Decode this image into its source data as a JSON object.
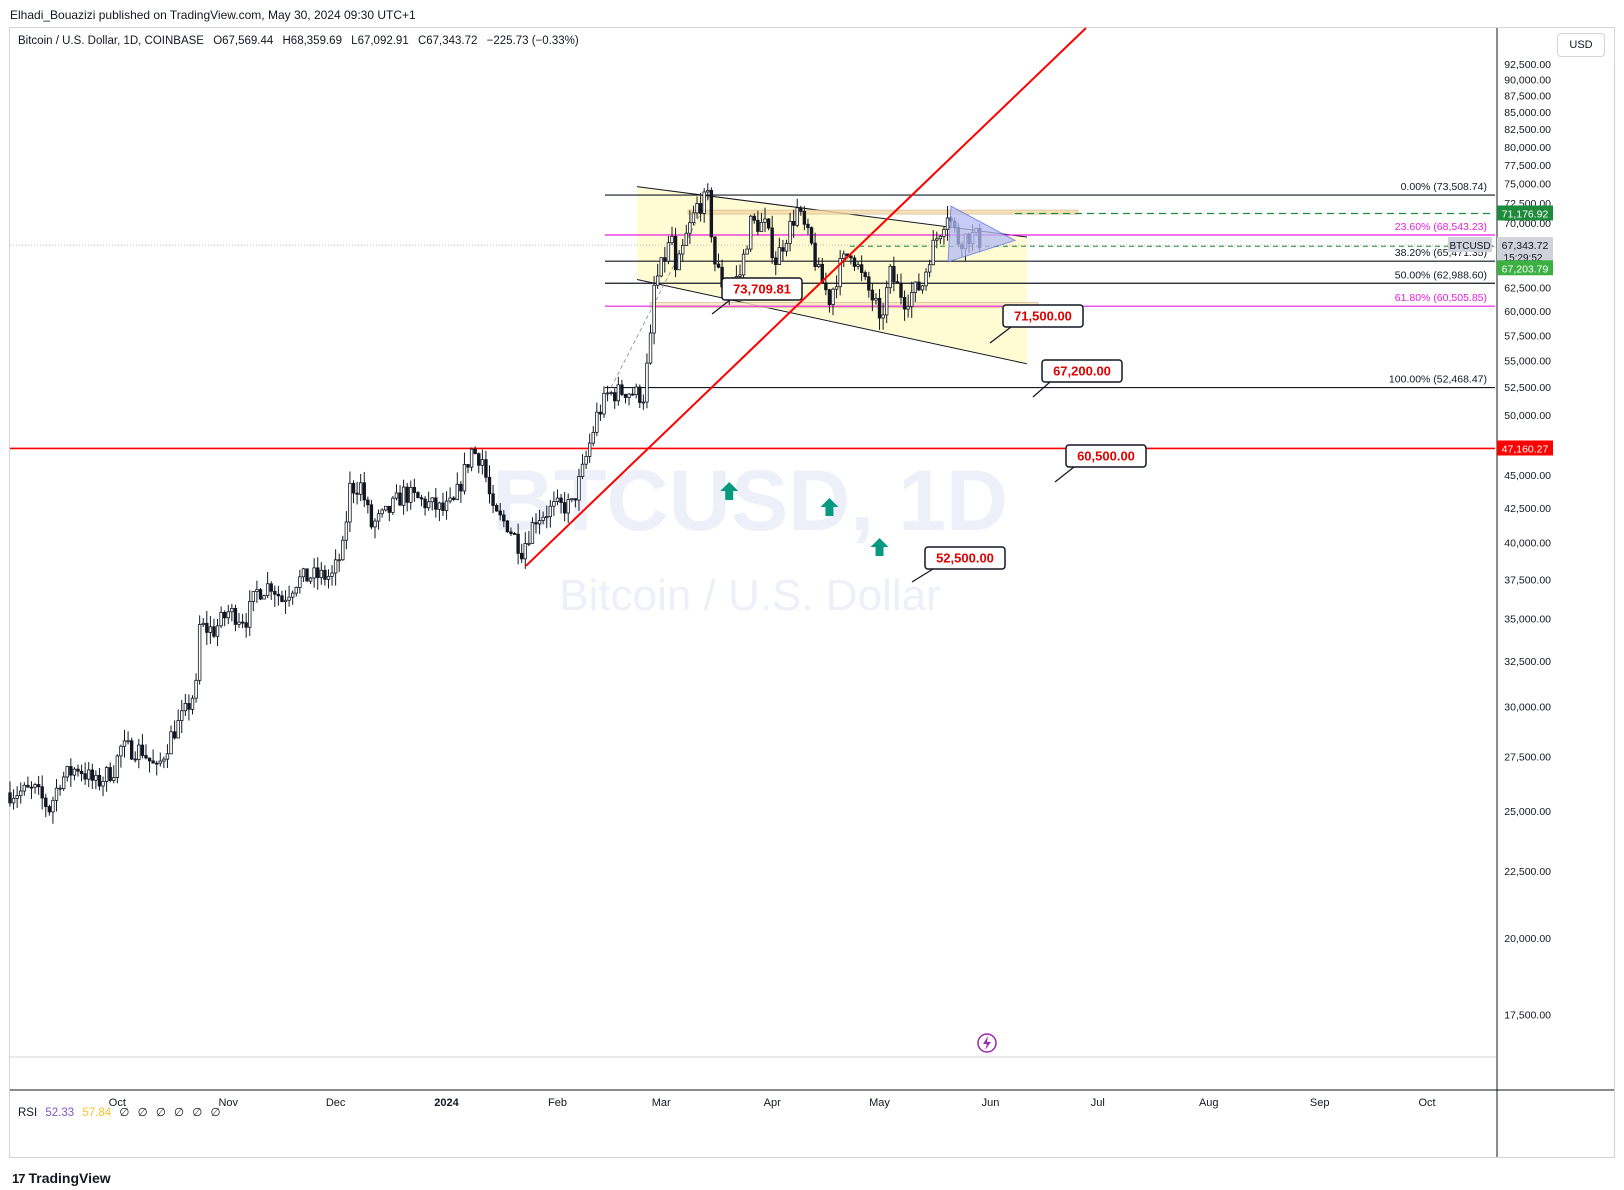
{
  "header": {
    "published_by": "Elhadi_Bouazizi published on TradingView.com, May 30, 2024 09:30 UTC+1"
  },
  "legend": {
    "symbol": "Bitcoin / U.S. Dollar, 1D, COINBASE",
    "open": "O67,569.44",
    "high": "H68,359.69",
    "low": "L67,092.91",
    "close": "C67,343.72",
    "change": "−225.73 (−0.33%)"
  },
  "rsi": {
    "label": "RSI",
    "value1": "52.33",
    "value2": "57.84",
    "empty_marks": [
      "∅",
      "∅",
      "∅",
      "∅",
      "∅",
      "∅"
    ]
  },
  "currency_button": "USD",
  "brand": {
    "logo": "17",
    "name": "TradingView"
  },
  "watermark": {
    "main": "BTCUSD, 1D",
    "sub": "Bitcoin / U.S. Dollar"
  },
  "colors": {
    "up": "#131722",
    "down": "#131722",
    "trendline": "#ff0000",
    "fib_pink": "#e91ee1",
    "fib_black": "#131722",
    "green_arrow": "#089981",
    "channel_fill": "#fff9c4"
  },
  "chart_data": {
    "type": "candlestick",
    "y_scale": "log",
    "ylim": [
      16300,
      98500
    ],
    "y_ticks": [
      17500,
      20000,
      22500,
      25000,
      27500,
      30000,
      32500,
      35000,
      37500,
      40000,
      42500,
      45000,
      47500,
      50000,
      52500,
      55000,
      57500,
      60000,
      62500,
      65000,
      67500,
      70000,
      72500,
      75000,
      77500,
      80000,
      82500,
      85000,
      87500,
      90000,
      92500
    ],
    "y_tick_labels": [
      "17,500.00",
      "20,000.00",
      "22,500.00",
      "25,000.00",
      "27,500.00",
      "30,000.00",
      "32,500.00",
      "35,000.00",
      "37,500.00",
      "40,000.00",
      "42,500.00",
      "45,000.00",
      "47,500.00",
      "50,000.00",
      "52,500.00",
      "55,000.00",
      "57,500.00",
      "60,000.00",
      "62,500.00",
      "65,000.00",
      "67,500.00",
      "70,000.00",
      "72,500.00",
      "75,000.00",
      "77,500.00",
      "80,000.00",
      "82,500.00",
      "85,000.00",
      "87,500.00",
      "90,000.00",
      "92,500.00"
    ],
    "x_axis": {
      "start_date": "2023-09-01",
      "end_date": "2024-10-20",
      "labels": [
        {
          "text": "Oct",
          "date": "2023-10-01"
        },
        {
          "text": "Nov",
          "date": "2023-11-01"
        },
        {
          "text": "Dec",
          "date": "2023-12-01"
        },
        {
          "text": "2024",
          "date": "2024-01-01",
          "bold": true
        },
        {
          "text": "Feb",
          "date": "2024-02-01"
        },
        {
          "text": "Mar",
          "date": "2024-03-01"
        },
        {
          "text": "Apr",
          "date": "2024-04-01"
        },
        {
          "text": "May",
          "date": "2024-05-01"
        },
        {
          "text": "Jun",
          "date": "2024-06-01"
        },
        {
          "text": "Jul",
          "date": "2024-07-01"
        },
        {
          "text": "Aug",
          "date": "2024-08-01"
        },
        {
          "text": "Sep",
          "date": "2024-09-01"
        },
        {
          "text": "Oct",
          "date": "2024-10-01"
        }
      ]
    },
    "series_close": [
      [
        "2023-09-01",
        25800
      ],
      [
        "2023-09-08",
        25900
      ],
      [
        "2023-09-12",
        25100
      ],
      [
        "2023-09-15",
        26400
      ],
      [
        "2023-09-20",
        27000
      ],
      [
        "2023-09-25",
        26200
      ],
      [
        "2023-09-30",
        26900
      ],
      [
        "2023-10-02",
        27900
      ],
      [
        "2023-10-08",
        27800
      ],
      [
        "2023-10-12",
        26800
      ],
      [
        "2023-10-16",
        28500
      ],
      [
        "2023-10-20",
        29700
      ],
      [
        "2023-10-23",
        31000
      ],
      [
        "2023-10-24",
        34500
      ],
      [
        "2023-10-28",
        34300
      ],
      [
        "2023-11-01",
        35400
      ],
      [
        "2023-11-06",
        35000
      ],
      [
        "2023-11-09",
        36700
      ],
      [
        "2023-11-13",
        37200
      ],
      [
        "2023-11-16",
        36200
      ],
      [
        "2023-11-20",
        37400
      ],
      [
        "2023-11-24",
        37700
      ],
      [
        "2023-11-30",
        37700
      ],
      [
        "2023-12-03",
        39500
      ],
      [
        "2023-12-05",
        44000
      ],
      [
        "2023-12-08",
        44200
      ],
      [
        "2023-12-11",
        41200
      ],
      [
        "2023-12-15",
        42000
      ],
      [
        "2023-12-20",
        43600
      ],
      [
        "2023-12-25",
        43000
      ],
      [
        "2023-12-31",
        42300
      ],
      [
        "2024-01-03",
        42800
      ],
      [
        "2024-01-08",
        47000
      ],
      [
        "2024-01-11",
        46300
      ],
      [
        "2024-01-14",
        42000
      ],
      [
        "2024-01-18",
        41300
      ],
      [
        "2024-01-22",
        39500
      ],
      [
        "2024-01-26",
        41800
      ],
      [
        "2024-01-31",
        42500
      ],
      [
        "2024-02-05",
        42700
      ],
      [
        "2024-02-08",
        45300
      ],
      [
        "2024-02-12",
        49900
      ],
      [
        "2024-02-15",
        51800
      ],
      [
        "2024-02-20",
        52200
      ],
      [
        "2024-02-25",
        51700
      ],
      [
        "2024-02-27",
        57000
      ],
      [
        "2024-02-28",
        62500
      ],
      [
        "2024-03-04",
        68300
      ],
      [
        "2024-03-05",
        63800
      ],
      [
        "2024-03-08",
        68300
      ],
      [
        "2024-03-11",
        72100
      ],
      [
        "2024-03-14",
        73000
      ],
      [
        "2024-03-16",
        65300
      ],
      [
        "2024-03-19",
        61900
      ],
      [
        "2024-03-23",
        64000
      ],
      [
        "2024-03-26",
        70000
      ],
      [
        "2024-03-30",
        69700
      ],
      [
        "2024-04-02",
        65600
      ],
      [
        "2024-04-08",
        71600
      ],
      [
        "2024-04-12",
        67200
      ],
      [
        "2024-04-14",
        64000
      ],
      [
        "2024-04-17",
        61300
      ],
      [
        "2024-04-20",
        64900
      ],
      [
        "2024-04-23",
        66800
      ],
      [
        "2024-04-26",
        63700
      ],
      [
        "2024-04-30",
        60600
      ],
      [
        "2024-05-01",
        58300
      ],
      [
        "2024-05-04",
        64000
      ],
      [
        "2024-05-08",
        61200
      ],
      [
        "2024-05-13",
        62900
      ],
      [
        "2024-05-15",
        66200
      ],
      [
        "2024-05-20",
        71400
      ],
      [
        "2024-05-21",
        70100
      ],
      [
        "2024-05-23",
        67900
      ],
      [
        "2024-05-26",
        68500
      ],
      [
        "2024-05-28",
        68300
      ],
      [
        "2024-05-30",
        67343.72
      ]
    ],
    "fib_levels": [
      {
        "ratio": "0.00%",
        "price": 73508.74,
        "label": "0.00% (73,508.74)",
        "color": "black"
      },
      {
        "ratio": "23.60%",
        "price": 68543.23,
        "label": "23.60% (68,543.23)",
        "color": "pink"
      },
      {
        "ratio": "38.20%",
        "price": 65471.35,
        "label": "38.20% (65,471.35)",
        "color": "black"
      },
      {
        "ratio": "50.00%",
        "price": 62988.6,
        "label": "50.00% (62,988.60)",
        "color": "black"
      },
      {
        "ratio": "61.80%",
        "price": 60505.85,
        "label": "61.80% (60,505.85)",
        "color": "pink"
      },
      {
        "ratio": "100.00%",
        "price": 52468.47,
        "label": "100.00% (52,468.47)",
        "color": "black"
      }
    ],
    "callouts": [
      {
        "text": "73,709.81",
        "price": 73709.81
      },
      {
        "text": "71,500.00",
        "price": 71500
      },
      {
        "text": "67,200.00",
        "price": 67200
      },
      {
        "text": "60,500.00",
        "price": 60500
      },
      {
        "text": "52,500.00",
        "price": 52500
      }
    ],
    "horizontal_level": {
      "price": 47160.27,
      "label": "47,160.27"
    },
    "price_tags": [
      {
        "text": "71,176.92",
        "price": 71176.92,
        "color": "#1e8a3c"
      },
      {
        "text": "67,343.72",
        "price": 67343.72,
        "color": "#cfd2d8",
        "sub": "15:29:52"
      },
      {
        "text": "67,203.79",
        "price": 67203.79,
        "color": "#3bb143"
      }
    ],
    "symbol_tag": "BTCUSD",
    "arrows_up_dates": [
      "2024-03-20",
      "2024-04-17",
      "2024-05-01"
    ]
  }
}
